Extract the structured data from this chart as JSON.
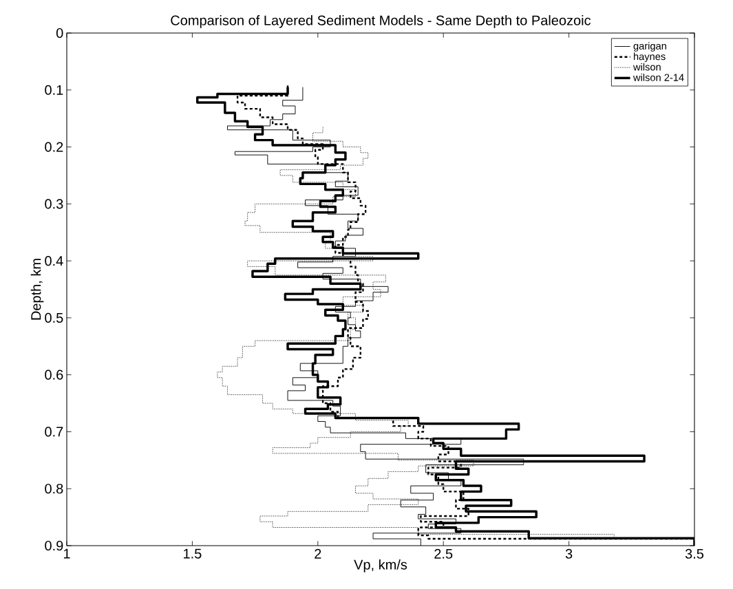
{
  "chart_data": {
    "type": "step",
    "title": "Comparison of Layered Sediment Models - Same Depth to Paleozoic",
    "xlabel": "Vp, km/s",
    "ylabel": "Depth, km",
    "xlim": [
      1,
      3.5
    ],
    "xticks": [
      1,
      1.5,
      2,
      2.5,
      3,
      3.5
    ],
    "ylim": [
      0.9,
      0
    ],
    "yticks": [
      0,
      0.1,
      0.2,
      0.3,
      0.4,
      0.5,
      0.6,
      0.7,
      0.8,
      0.9
    ],
    "legend": "top right",
    "series": [
      {
        "name": "garigan",
        "color": "#000000",
        "line_style": "solid",
        "x": [
          1.94,
          1.86,
          1.91,
          1.86,
          1.81,
          1.64,
          1.9,
          2.05,
          1.98,
          1.67,
          1.8,
          2.03,
          2.12,
          2.07,
          2.16,
          2.1,
          1.95,
          2.04,
          2.16,
          2.12,
          2.18,
          2.11,
          2.07,
          2.15,
          2.06,
          1.92,
          2.1,
          2.02,
          2.17,
          2.28,
          2.22,
          2.15,
          2.07,
          2.13,
          2.12,
          2.15,
          2.17,
          2.12,
          2.1,
          1.93,
          2.0,
          1.9,
          1.95,
          1.88,
          2.06,
          2.09,
          2.0,
          2.03,
          2.05,
          2.35,
          2.57,
          2.17,
          2.19,
          2.82,
          2.43,
          2.52,
          2.57,
          2.37,
          2.46,
          2.33,
          2.43,
          2.4,
          2.55,
          2.44,
          2.57,
          2.22,
          2.41,
          2.41
        ],
        "values": [
          0.095,
          0.118,
          0.128,
          0.142,
          0.152,
          0.163,
          0.17,
          0.188,
          0.2,
          0.208,
          0.214,
          0.23,
          0.245,
          0.26,
          0.27,
          0.285,
          0.293,
          0.303,
          0.318,
          0.33,
          0.343,
          0.355,
          0.365,
          0.378,
          0.392,
          0.402,
          0.412,
          0.422,
          0.432,
          0.445,
          0.455,
          0.47,
          0.48,
          0.49,
          0.5,
          0.512,
          0.523,
          0.535,
          0.55,
          0.58,
          0.593,
          0.605,
          0.618,
          0.628,
          0.645,
          0.655,
          0.672,
          0.682,
          0.692,
          0.702,
          0.712,
          0.722,
          0.735,
          0.748,
          0.758,
          0.772,
          0.785,
          0.795,
          0.808,
          0.82,
          0.832,
          0.845,
          0.853,
          0.862,
          0.87,
          0.878,
          0.888,
          0.9
        ]
      },
      {
        "name": "haynes",
        "color": "#000000",
        "line_style": "dashed",
        "x": [
          1.88,
          1.68,
          1.71,
          1.77,
          1.82,
          1.88,
          1.92,
          1.94,
          2.02,
          1.99,
          2.0,
          2.1,
          2.12,
          2.15,
          2.13,
          2.17,
          2.19,
          2.16,
          2.13,
          2.12,
          2.1,
          2.07,
          2.1,
          2.13,
          2.15,
          2.16,
          2.18,
          2.15,
          2.18,
          2.2,
          2.18,
          2.12,
          2.13,
          2.17,
          2.14,
          2.1,
          2.08,
          2.02,
          2.05,
          2.08,
          2.3,
          2.42,
          2.4,
          2.45,
          2.52,
          2.48,
          2.57,
          2.44,
          2.48,
          2.5,
          2.58,
          2.55,
          2.6,
          2.41,
          2.5,
          2.4,
          2.44,
          3.5,
          3.5
        ],
        "values": [
          0.092,
          0.11,
          0.122,
          0.133,
          0.148,
          0.16,
          0.17,
          0.185,
          0.195,
          0.205,
          0.218,
          0.23,
          0.245,
          0.262,
          0.278,
          0.29,
          0.303,
          0.318,
          0.332,
          0.345,
          0.358,
          0.372,
          0.386,
          0.396,
          0.41,
          0.425,
          0.44,
          0.455,
          0.472,
          0.488,
          0.502,
          0.518,
          0.535,
          0.55,
          0.57,
          0.59,
          0.605,
          0.62,
          0.65,
          0.665,
          0.676,
          0.69,
          0.7,
          0.712,
          0.725,
          0.74,
          0.752,
          0.763,
          0.775,
          0.792,
          0.805,
          0.82,
          0.835,
          0.848,
          0.858,
          0.868,
          0.882,
          0.888,
          0.9
        ]
      },
      {
        "name": "wilson",
        "color": "#000000",
        "line_style": "dotted",
        "x": [
          2.02,
          1.98,
          2.1,
          2.17,
          2.2,
          2.18,
          2.09,
          1.85,
          1.9,
          2.1,
          2.15,
          2.06,
          1.75,
          1.72,
          1.71,
          1.77,
          2.05,
          2.03,
          2.1,
          2.22,
          1.72,
          1.83,
          2.27,
          2.22,
          2.25,
          2.1,
          2.18,
          2.12,
          2.15,
          2.13,
          1.75,
          1.7,
          1.68,
          1.62,
          1.6,
          1.62,
          1.64,
          1.78,
          1.82,
          1.9,
          2.15,
          2.36,
          2.33,
          2.13,
          2.0,
          1.97,
          1.82,
          2.32,
          2.62,
          2.4,
          2.28,
          2.2,
          2.15,
          2.22,
          2.4,
          2.2,
          1.88,
          1.77,
          1.82,
          2.4,
          3.18,
          3.5,
          3.5
        ],
        "values": [
          0.165,
          0.175,
          0.19,
          0.2,
          0.21,
          0.22,
          0.232,
          0.24,
          0.25,
          0.262,
          0.275,
          0.287,
          0.3,
          0.315,
          0.33,
          0.338,
          0.35,
          0.365,
          0.378,
          0.392,
          0.4,
          0.41,
          0.425,
          0.437,
          0.45,
          0.463,
          0.478,
          0.49,
          0.5,
          0.52,
          0.54,
          0.55,
          0.57,
          0.585,
          0.595,
          0.605,
          0.62,
          0.635,
          0.65,
          0.66,
          0.668,
          0.68,
          0.69,
          0.7,
          0.71,
          0.72,
          0.728,
          0.738,
          0.75,
          0.76,
          0.77,
          0.782,
          0.795,
          0.808,
          0.818,
          0.828,
          0.84,
          0.848,
          0.858,
          0.868,
          0.88,
          0.888,
          0.9
        ]
      },
      {
        "name": "wilson 2-14",
        "color": "#000000",
        "line_style": "solid",
        "x": [
          1.88,
          1.6,
          1.52,
          1.63,
          1.67,
          1.72,
          1.78,
          1.75,
          1.82,
          2.07,
          2.11,
          2.07,
          2.03,
          1.94,
          1.93,
          2.03,
          2.1,
          2.07,
          2.01,
          2.07,
          1.98,
          1.9,
          1.98,
          2.06,
          2.02,
          2.06,
          2.1,
          2.4,
          1.83,
          1.8,
          1.74,
          2.05,
          2.17,
          1.98,
          1.87,
          2.0,
          2.1,
          2.03,
          2.08,
          2.11,
          2.1,
          2.07,
          1.88,
          2.06,
          1.99,
          1.98,
          2.0,
          2.04,
          2.0,
          2.09,
          2.04,
          1.95,
          2.07,
          2.4,
          2.8,
          2.75,
          2.46,
          2.5,
          2.57,
          3.3,
          2.55,
          2.6,
          2.47,
          2.58,
          2.65,
          2.57,
          2.77,
          2.59,
          2.87,
          2.64,
          2.47,
          2.55,
          2.84,
          3.5,
          3.5
        ],
        "values": [
          0.095,
          0.107,
          0.113,
          0.122,
          0.14,
          0.155,
          0.165,
          0.178,
          0.188,
          0.197,
          0.21,
          0.222,
          0.232,
          0.245,
          0.255,
          0.265,
          0.275,
          0.285,
          0.295,
          0.305,
          0.315,
          0.33,
          0.34,
          0.348,
          0.358,
          0.367,
          0.377,
          0.387,
          0.396,
          0.405,
          0.418,
          0.428,
          0.44,
          0.45,
          0.458,
          0.468,
          0.476,
          0.486,
          0.496,
          0.505,
          0.52,
          0.532,
          0.545,
          0.555,
          0.565,
          0.58,
          0.6,
          0.612,
          0.622,
          0.64,
          0.652,
          0.66,
          0.668,
          0.676,
          0.686,
          0.696,
          0.712,
          0.72,
          0.73,
          0.742,
          0.752,
          0.765,
          0.775,
          0.785,
          0.795,
          0.805,
          0.82,
          0.83,
          0.84,
          0.85,
          0.86,
          0.868,
          0.875,
          0.887,
          0.9
        ]
      }
    ]
  }
}
